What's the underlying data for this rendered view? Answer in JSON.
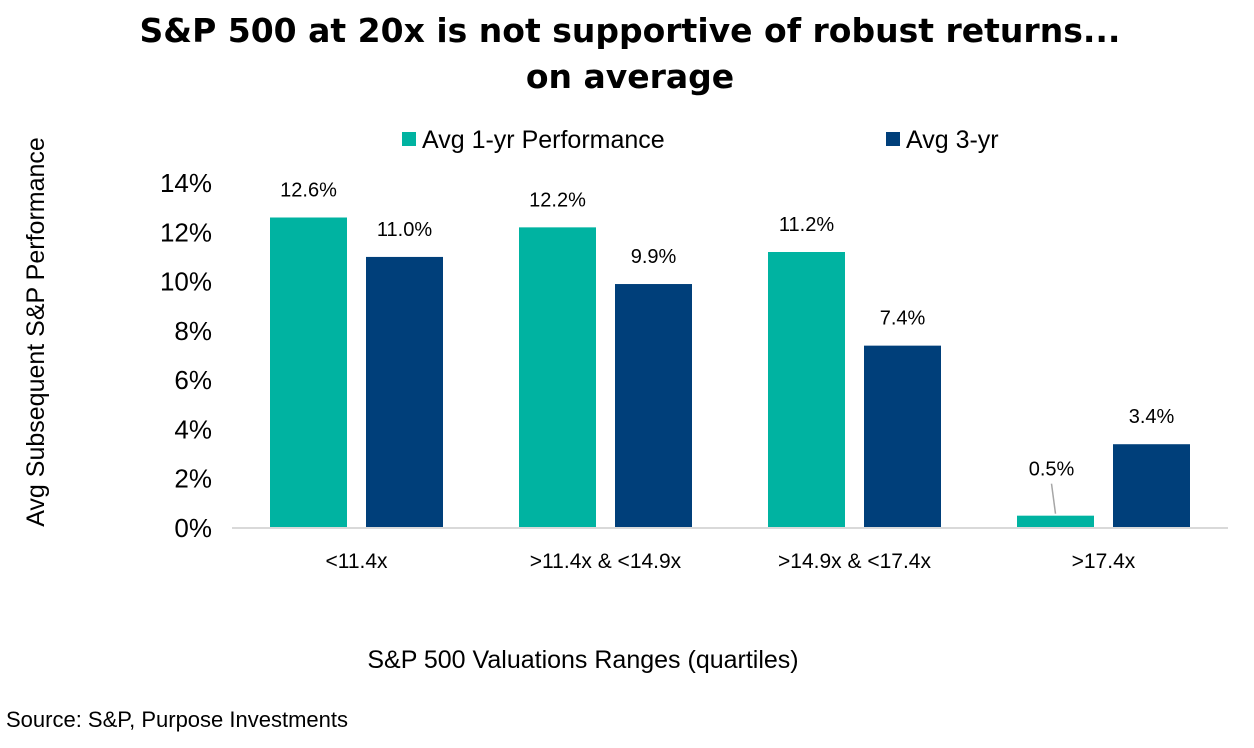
{
  "chart_data": {
    "type": "bar",
    "title": "S&P 500 at 20x is not supportive of robust returns...",
    "subtitle": "on average",
    "xlabel": "S&P 500 Valuations Ranges (quartiles)",
    "ylabel": "Avg Subsequent S&P Performance",
    "categories": [
      "<11.4x",
      ">11.4x & <14.9x",
      ">14.9x & <17.4x",
      ">17.4x"
    ],
    "series": [
      {
        "name": "Avg 1-yr Performance",
        "color": "#00B3A1",
        "values": [
          12.6,
          12.2,
          11.2,
          0.5
        ],
        "labels": [
          "12.6%",
          "12.2%",
          "11.2%",
          "0.5%"
        ]
      },
      {
        "name": "Avg 3-yr",
        "color": "#003F7A",
        "values": [
          11.0,
          9.9,
          7.4,
          3.4
        ],
        "labels": [
          "11.0%",
          "9.9%",
          "7.4%",
          "3.4%"
        ]
      }
    ],
    "y_ticks": [
      0,
      2,
      4,
      6,
      8,
      10,
      12,
      14
    ],
    "y_tick_labels": [
      "0%",
      "2%",
      "4%",
      "6%",
      "8%",
      "10%",
      "12%",
      "14%"
    ],
    "ylim": [
      0,
      14
    ],
    "grid": false,
    "legend_position": "top-center"
  },
  "source": "Source: S&P, Purpose Investments"
}
